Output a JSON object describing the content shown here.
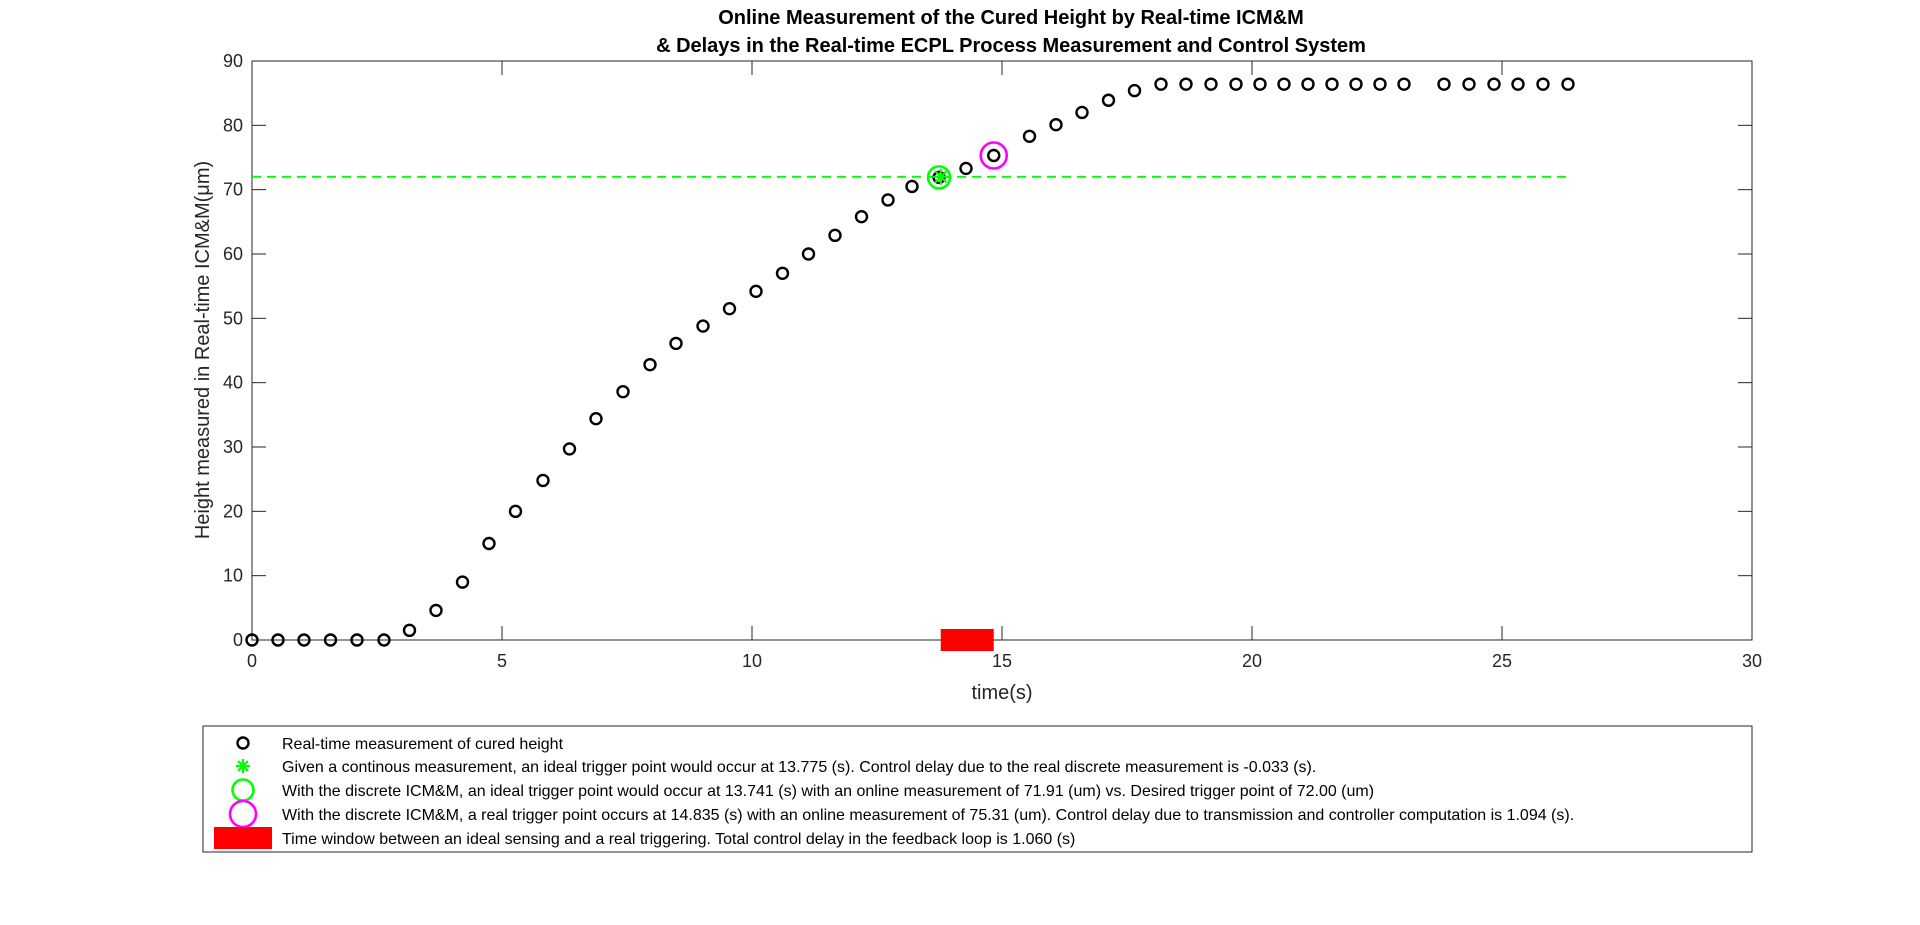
{
  "chart_data": {
    "type": "scatter",
    "title": [
      "Online Measurement of the Cured Height by Real-time ICM&M",
      "& Delays in the Real-time ECPL Process Measurement and Control System"
    ],
    "xlabel": "time(s)",
    "ylabel": "Height measured in Real-time ICM&M(μm)",
    "xlim": [
      0,
      30
    ],
    "ylim": [
      0,
      90
    ],
    "xticks": [
      0,
      5,
      10,
      15,
      20,
      25,
      30
    ],
    "yticks": [
      0,
      10,
      20,
      30,
      40,
      50,
      60,
      70,
      80,
      90
    ],
    "grid": false,
    "legend_position": "below-plot",
    "series": [
      {
        "name": "Real-time measurement of cured height",
        "marker": "circle-open",
        "color": "#000000",
        "x": [
          0.0,
          0.52,
          1.04,
          1.57,
          2.1,
          2.64,
          3.15,
          3.68,
          4.21,
          4.74,
          5.27,
          5.82,
          6.35,
          6.88,
          7.42,
          7.96,
          8.48,
          9.02,
          9.55,
          10.08,
          10.61,
          11.13,
          11.66,
          12.19,
          12.72,
          13.2,
          13.741,
          14.28,
          14.835,
          15.55,
          16.08,
          16.6,
          17.13,
          17.65,
          18.18,
          18.68,
          19.18,
          19.68,
          20.16,
          20.64,
          21.12,
          21.6,
          22.08,
          22.56,
          23.04,
          23.84,
          24.34,
          24.84,
          25.32,
          25.82,
          26.32
        ],
        "y": [
          0,
          0,
          0,
          0,
          0,
          0,
          1.5,
          4.6,
          9.0,
          15.0,
          20.0,
          24.8,
          29.7,
          34.4,
          38.6,
          42.8,
          46.1,
          48.8,
          51.5,
          54.2,
          57.0,
          60.0,
          62.9,
          65.8,
          68.4,
          70.5,
          71.91,
          73.3,
          75.31,
          78.3,
          80.1,
          82.0,
          83.9,
          85.4,
          86.4,
          86.4,
          86.4,
          86.4,
          86.4,
          86.4,
          86.4,
          86.4,
          86.4,
          86.4,
          86.4,
          86.4,
          86.4,
          86.4,
          86.4,
          86.4,
          86.4
        ]
      },
      {
        "name": "Given a continous measurement, an ideal trigger point would occur at 13.775 (s). Control delay due to the real discrete measurement is -0.033 (s).",
        "marker": "asterisk",
        "color": "#00ff00",
        "x": [
          13.775
        ],
        "y": [
          72.0
        ]
      },
      {
        "name": "With the discrete ICM&M, an ideal trigger point would occur at 13.741 (s) with an online measurement of 71.91 (um) vs. Desired trigger point of 72.00 (um)",
        "marker": "circle-large",
        "color": "#00ff00",
        "x": [
          13.741
        ],
        "y": [
          71.91
        ]
      },
      {
        "name": "With the discrete ICM&M, a real trigger point occurs at 14.835 (s) with an online measurement of 75.31 (um). Control delay due to transmission and controller computation is 1.094 (s).",
        "marker": "circle-large",
        "color": "#ff00ff",
        "x": [
          14.835
        ],
        "y": [
          75.31
        ]
      },
      {
        "name": "Time window between an ideal sensing and a real triggering. Total control delay in the feedback loop is 1.060 (s)",
        "marker": "filled-rectangle",
        "color": "#ff0000",
        "x_start": 13.775,
        "x_end": 14.835
      }
    ],
    "reference_line": {
      "style": "dashed",
      "color": "#00ff00",
      "y": 72.0,
      "x_range": [
        0,
        26.32
      ]
    }
  }
}
